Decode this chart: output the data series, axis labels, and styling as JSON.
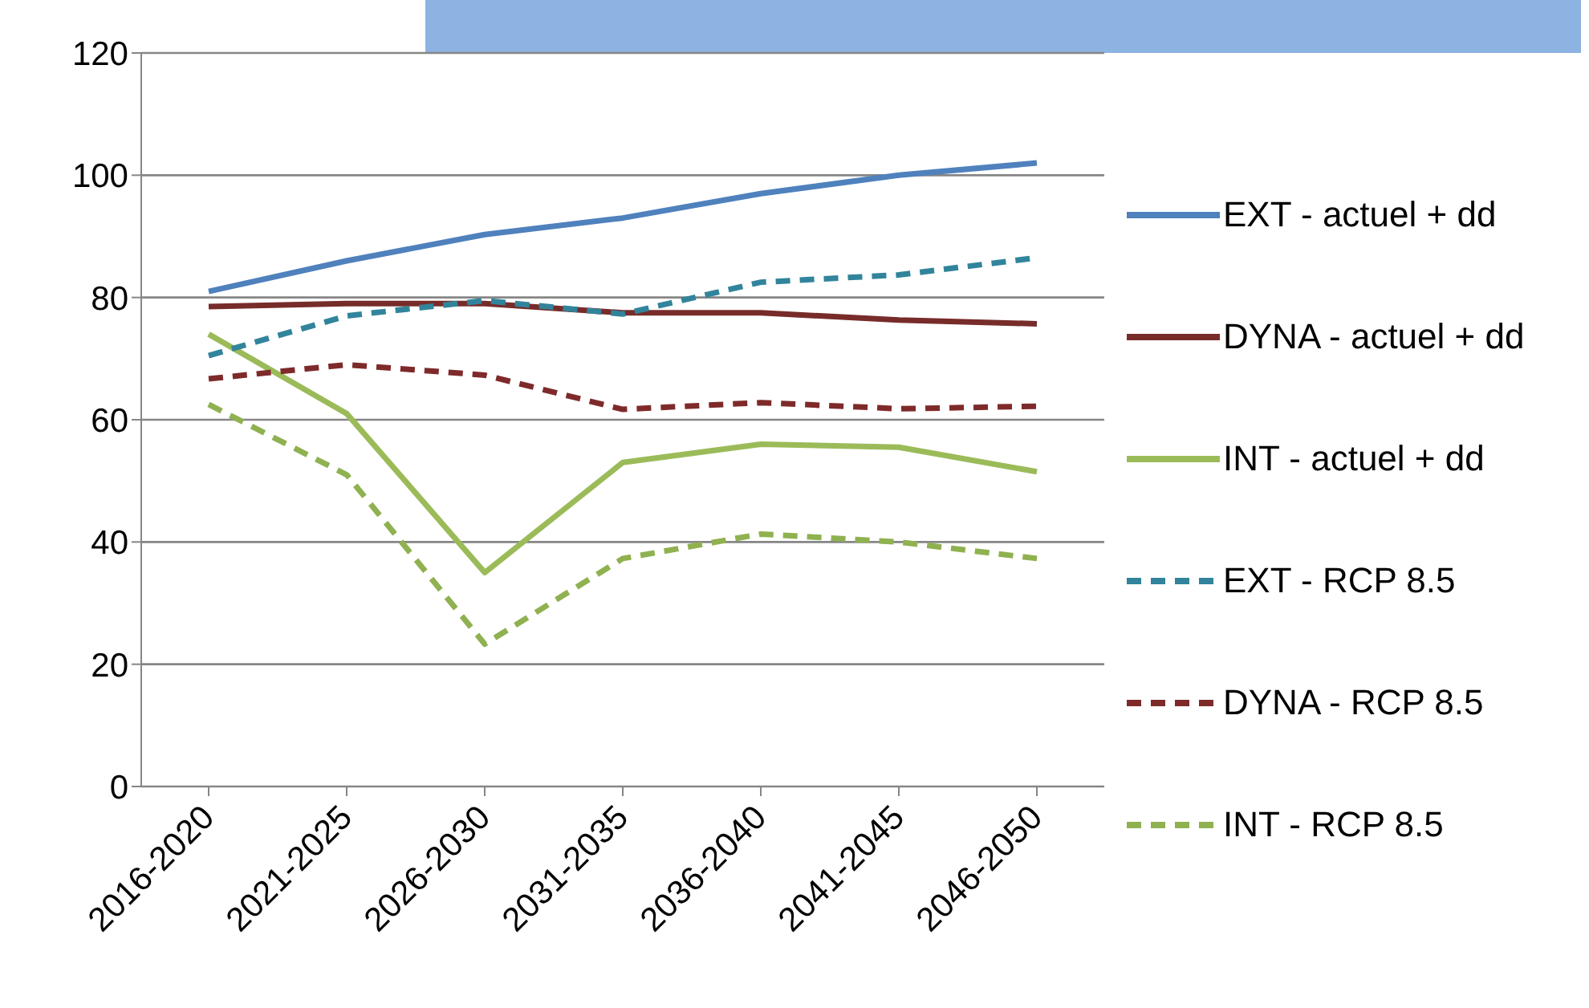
{
  "chart_data": {
    "type": "line",
    "categories": [
      "2016-2020",
      "2021-2025",
      "2026-2030",
      "2031-2035",
      "2036-2040",
      "2041-2045",
      "2046-2050"
    ],
    "series": [
      {
        "name": "EXT - actuel + dd",
        "color": "#4f81bd",
        "line_style": "solid",
        "values": [
          81,
          86,
          90.3,
          93,
          97,
          100,
          102
        ]
      },
      {
        "name": "DYNA - actuel + dd",
        "color": "#772c2a",
        "line_style": "solid",
        "values": [
          78.5,
          79,
          79,
          77.5,
          77.5,
          76.3,
          75.7
        ]
      },
      {
        "name": "INT - actuel + dd",
        "color": "#9bbb59",
        "line_style": "solid",
        "values": [
          74,
          61,
          35,
          53,
          56,
          55.5,
          51.5
        ]
      },
      {
        "name": "EXT - RCP 8.5",
        "color": "#31849b",
        "line_style": "dashed",
        "values": [
          70.5,
          77,
          79.5,
          77.3,
          82.5,
          83.7,
          86.5
        ]
      },
      {
        "name": "DYNA - RCP 8.5",
        "color": "#7f2a2a",
        "line_style": "dashed",
        "values": [
          66.7,
          69,
          67.3,
          61.7,
          62.8,
          61.8,
          62.2
        ]
      },
      {
        "name": "INT - RCP 8.5",
        "color": "#8fb150",
        "line_style": "dashed",
        "values": [
          62.5,
          51,
          23.3,
          37.3,
          41.3,
          40,
          37.3
        ]
      }
    ],
    "ylim": [
      0,
      120
    ],
    "yticks": [
      0,
      20,
      40,
      60,
      80,
      100,
      120
    ],
    "grid": "y",
    "legend": "right",
    "marker": "none"
  }
}
